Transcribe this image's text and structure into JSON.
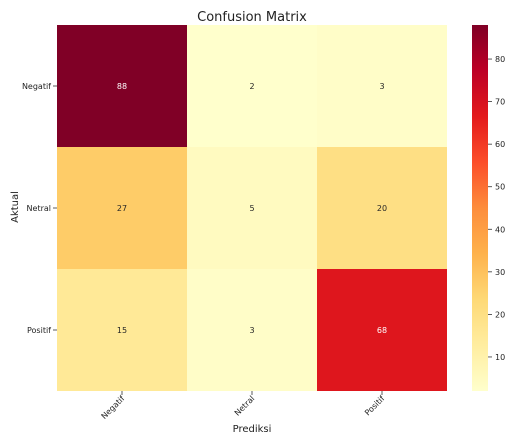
{
  "chart_data": {
    "type": "heatmap",
    "title": "Confusion Matrix",
    "xlabel": "Prediksi",
    "ylabel": "Aktual",
    "x_categories": [
      "Negatif",
      "Netral",
      "Positif"
    ],
    "y_categories": [
      "Negatif",
      "Netral",
      "Positif"
    ],
    "values": [
      [
        88,
        2,
        3
      ],
      [
        27,
        5,
        20
      ],
      [
        15,
        3,
        68
      ]
    ],
    "colormap": "YlOrRd",
    "vmin": 2,
    "vmax": 88,
    "colorbar_ticks": [
      10,
      20,
      30,
      40,
      50,
      60,
      70,
      80
    ]
  }
}
